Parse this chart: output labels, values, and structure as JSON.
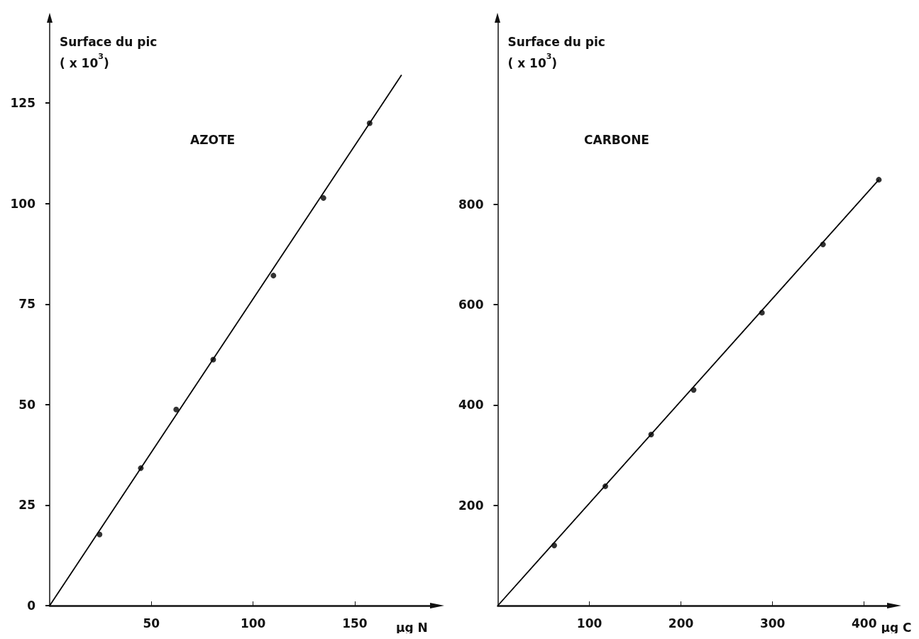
{
  "chart_data": [
    {
      "type": "scatter",
      "title": "AZOTE",
      "xlabel": "µg N",
      "ylabel": "Surface du pic\n( x 10$^{3}$)",
      "grid": false,
      "xlim": [
        0,
        187
      ],
      "xticks": [
        50,
        100,
        150
      ],
      "ylim": [
        0,
        145
      ],
      "yticks": [
        0,
        25,
        50,
        75,
        100,
        125
      ],
      "series": [
        {
          "type": "scatter",
          "marker": "circle",
          "color": "#000000",
          "x": [
            24.5,
            44.8,
            62.2,
            80.4,
            110,
            134.6,
            157.3
          ],
          "values": [
            17.7,
            34.2,
            48.8,
            61.2,
            82.1,
            101.4,
            120.0
          ]
        },
        {
          "type": "line",
          "marker": "none",
          "color": "#000000",
          "x": [
            0,
            173
          ],
          "values": [
            0,
            132
          ]
        }
      ]
    },
    {
      "type": "scatter",
      "title": "CARBONE",
      "xlabel": "µg C",
      "ylabel": "Surface du pic\n( x 10$^{3}$)",
      "grid": false,
      "xlim": [
        0,
        425
      ],
      "xticks": [
        100,
        200,
        300,
        400
      ],
      "ylim": [
        0,
        1162
      ],
      "yticks": [
        200,
        400,
        600,
        800
      ],
      "series": [
        {
          "type": "scatter",
          "marker": "circle",
          "color": "#000000",
          "x": [
            61.6,
            117.4,
            167.4,
            213.8,
            288.4,
            355,
            416
          ],
          "values": [
            120,
            238,
            341,
            430,
            584,
            720,
            849
          ]
        },
        {
          "type": "line",
          "marker": "none",
          "color": "#000000",
          "x": [
            0,
            416
          ],
          "values": [
            0,
            849
          ]
        }
      ]
    }
  ]
}
